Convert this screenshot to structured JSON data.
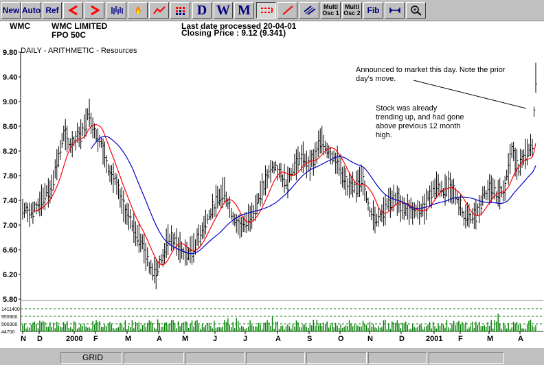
{
  "toolbar": {
    "buttons": [
      {
        "label": "New"
      },
      {
        "label": "Auto"
      },
      {
        "label": "Ref"
      },
      {
        "icon": "arrow-left-icon"
      },
      {
        "icon": "arrow-right-icon"
      },
      {
        "icon": "bar-pattern-icon"
      },
      {
        "icon": "fire-icon"
      },
      {
        "icon": "line-tool-icon"
      },
      {
        "icon": "grid-dots-icon"
      },
      {
        "label": "D"
      },
      {
        "label": "W"
      },
      {
        "label": "M"
      },
      {
        "icon": "dashed-line-icon"
      },
      {
        "icon": "trendline-icon"
      },
      {
        "icon": "channel-icon"
      },
      {
        "label": "Multi Osc 1"
      },
      {
        "label": "Multi Osc 2"
      },
      {
        "label": "Fib"
      },
      {
        "icon": "measure-icon"
      },
      {
        "icon": "zoom-icon"
      }
    ],
    "accent_red": "#ff0000",
    "accent_navy": "#000080"
  },
  "header": {
    "code": "WMC",
    "company": "WMC LIMITED",
    "index": "FPO 50C",
    "last_date": "Last date processed 20-04-01",
    "closing_price": "Closing Price : 9.12  (9.341)",
    "subtitle": "DAILY  -  ARITHMETIC  -       Resources"
  },
  "annotations": {
    "note1": "Announced to market this day.  Note the prior day's move.",
    "note2": "Stock was already trending up, and had gone above previous 12 month high."
  },
  "statusbar": {
    "grid_label": "GRID"
  },
  "chart_data": {
    "type": "bar",
    "price_axis_ticks": [
      "9.80",
      "9.40",
      "9.00",
      "8.60",
      "8.20",
      "7.80",
      "7.40",
      "7.00",
      "6.60",
      "6.20",
      "5.80"
    ],
    "ylim": [
      5.8,
      9.8
    ],
    "volume_axis_ticks": [
      "1411400",
      "955900",
      "500300",
      "44700"
    ],
    "x_ticks": [
      "N",
      "D",
      "2000",
      "F",
      "M",
      "A",
      "M",
      "J",
      "J",
      "A",
      "S",
      "O",
      "N",
      "D",
      "2001",
      "F",
      "M",
      "A"
    ],
    "series": [
      {
        "name": "",
        "kind": "daily-price-bars",
        "color": "#000000"
      },
      {
        "name": "",
        "kind": "short-moving-average",
        "color": "#ff0000"
      },
      {
        "name": "",
        "kind": "long-moving-average",
        "color": "#0000cc"
      },
      {
        "name": "",
        "kind": "volume",
        "color": "#008000"
      }
    ],
    "price_path": [
      [
        0,
        7.25
      ],
      [
        3,
        7.2
      ],
      [
        6,
        7.45
      ],
      [
        8,
        7.55
      ],
      [
        10,
        8.0
      ],
      [
        12,
        8.45
      ],
      [
        14,
        8.3
      ],
      [
        16,
        8.45
      ],
      [
        18,
        8.55
      ],
      [
        19,
        8.85
      ],
      [
        21,
        8.55
      ],
      [
        23,
        8.3
      ],
      [
        25,
        7.95
      ],
      [
        27,
        7.7
      ],
      [
        29,
        7.35
      ],
      [
        31,
        7.1
      ],
      [
        33,
        6.9
      ],
      [
        35,
        6.7
      ],
      [
        37,
        6.35
      ],
      [
        39,
        6.25
      ],
      [
        41,
        6.5
      ],
      [
        43,
        6.8
      ],
      [
        45,
        6.7
      ],
      [
        47,
        6.55
      ],
      [
        49,
        6.55
      ],
      [
        51,
        6.75
      ],
      [
        53,
        7.0
      ],
      [
        55,
        7.2
      ],
      [
        57,
        7.4
      ],
      [
        59,
        7.55
      ],
      [
        61,
        7.2
      ],
      [
        63,
        7.0
      ],
      [
        65,
        7.0
      ],
      [
        67,
        7.2
      ],
      [
        69,
        7.4
      ],
      [
        71,
        7.7
      ],
      [
        73,
        7.95
      ],
      [
        75,
        7.85
      ],
      [
        77,
        7.7
      ],
      [
        79,
        7.9
      ],
      [
        81,
        8.1
      ],
      [
        83,
        8.0
      ],
      [
        85,
        8.05
      ],
      [
        87,
        8.35
      ],
      [
        89,
        8.25
      ],
      [
        91,
        8.1
      ],
      [
        93,
        7.9
      ],
      [
        95,
        7.6
      ],
      [
        97,
        7.6
      ],
      [
        99,
        7.8
      ],
      [
        101,
        7.3
      ],
      [
        103,
        7.1
      ],
      [
        105,
        7.2
      ],
      [
        107,
        7.4
      ],
      [
        109,
        7.4
      ],
      [
        111,
        7.3
      ],
      [
        113,
        7.25
      ],
      [
        115,
        7.2
      ],
      [
        117,
        7.25
      ],
      [
        119,
        7.5
      ],
      [
        121,
        7.65
      ],
      [
        123,
        7.55
      ],
      [
        125,
        7.65
      ],
      [
        127,
        7.4
      ],
      [
        129,
        7.15
      ],
      [
        131,
        7.1
      ],
      [
        133,
        7.2
      ],
      [
        135,
        7.5
      ],
      [
        137,
        7.55
      ],
      [
        139,
        7.5
      ],
      [
        141,
        7.65
      ],
      [
        143,
        8.2
      ],
      [
        145,
        7.95
      ],
      [
        147,
        8.1
      ],
      [
        149,
        8.3
      ],
      [
        150,
        9.35
      ]
    ],
    "volume_levels": [
      0.15,
      0.1,
      0.2,
      0.1,
      0.25,
      0.1,
      0.3,
      0.15,
      0.1,
      0.95,
      0.2,
      0.1,
      0.15,
      0.3,
      0.1,
      0.2,
      0.1,
      0.15,
      0.35,
      0.1
    ]
  }
}
